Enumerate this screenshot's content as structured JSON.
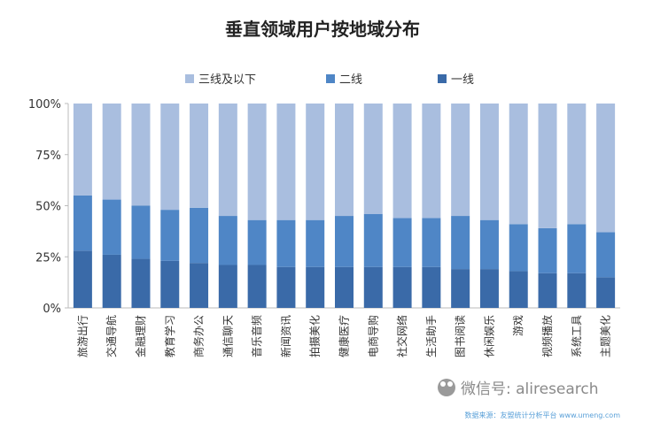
{
  "chart_data": {
    "type": "stacked-bar",
    "title": "垂直领域用户按地域分布",
    "categories": [
      "旅游出行",
      "交通导航",
      "金融理财",
      "教育学习",
      "商务办公",
      "通信聊天",
      "音乐音频",
      "新闻资讯",
      "拍摄美化",
      "健康医疗",
      "电商导购",
      "社交网络",
      "生活助手",
      "图书阅读",
      "休闲娱乐",
      "游戏",
      "视频播放",
      "系统工具",
      "主题美化"
    ],
    "series": [
      {
        "name": "一线",
        "color": "#3a6aa8",
        "values": [
          28,
          26,
          24,
          23,
          22,
          21,
          21,
          20,
          20,
          20,
          20,
          20,
          20,
          19,
          19,
          18,
          17,
          17,
          15
        ]
      },
      {
        "name": "二线",
        "color": "#4f86c6",
        "values": [
          27,
          27,
          26,
          25,
          27,
          24,
          22,
          23,
          23,
          25,
          26,
          24,
          24,
          26,
          24,
          23,
          22,
          24,
          22
        ]
      },
      {
        "name": "三线及以下",
        "color": "#a9bedf",
        "values": [
          45,
          47,
          50,
          52,
          51,
          55,
          57,
          57,
          57,
          55,
          54,
          56,
          56,
          55,
          57,
          59,
          61,
          59,
          63
        ]
      }
    ],
    "legend_order": [
      "三线及以下",
      "二线",
      "一线"
    ],
    "legend_position": "top",
    "y_ticks": [
      "0%",
      "25%",
      "50%",
      "75%",
      "100%"
    ],
    "ylim": [
      0,
      100
    ],
    "xlabel": "",
    "ylabel": ""
  },
  "watermark": {
    "wechat": "微信号: aliresearch",
    "source": "数据来源：友盟统计分析平台 www.umeng.com"
  }
}
